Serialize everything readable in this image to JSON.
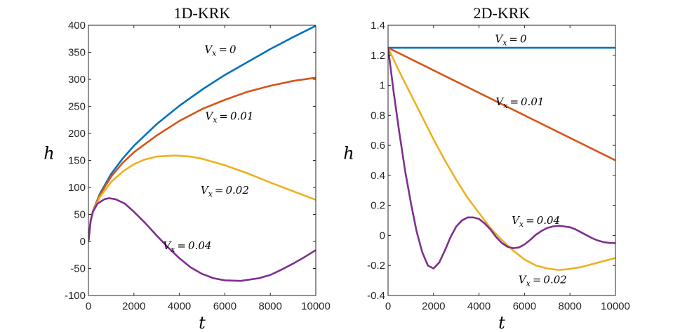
{
  "colors": {
    "blue": "#0072BD",
    "orange": "#D95319",
    "yellow": "#EDB120",
    "purple": "#7E2F8E"
  },
  "chart_data": [
    {
      "type": "line",
      "title": "1D-KRK",
      "xlabel": "t",
      "ylabel": "h",
      "xlim": [
        0,
        10000
      ],
      "ylim": [
        -100,
        400
      ],
      "xticks": [
        0,
        2000,
        4000,
        6000,
        8000,
        10000
      ],
      "xtick_labels": [
        "0",
        "2000",
        "4000",
        "6000",
        "8000",
        "10000"
      ],
      "yticks": [
        -100,
        -50,
        0,
        50,
        100,
        150,
        200,
        250,
        300,
        350,
        400
      ],
      "ytick_labels": [
        "-100",
        "-50",
        "0",
        "50",
        "100",
        "150",
        "200",
        "250",
        "300",
        "350",
        "400"
      ],
      "grid": false,
      "series": [
        {
          "name": "V_x = 0",
          "color": "#0072BD",
          "x": [
            0,
            100,
            200,
            500,
            1000,
            1500,
            2000,
            3000,
            4000,
            5000,
            6000,
            7000,
            8000,
            9000,
            10000
          ],
          "y": [
            0,
            40,
            56,
            88,
            125,
            153,
            177,
            217,
            251,
            281,
            308,
            332,
            356,
            378,
            399
          ]
        },
        {
          "name": "V_x = 0.01",
          "color": "#D95319",
          "x": [
            0,
            100,
            200,
            500,
            1000,
            1500,
            2000,
            3000,
            4000,
            5000,
            6000,
            7000,
            8000,
            9000,
            10000
          ],
          "y": [
            0,
            40,
            56,
            86,
            120,
            145,
            165,
            196,
            223,
            245,
            262,
            277,
            288,
            297,
            303
          ]
        },
        {
          "name": "V_x = 0.02",
          "color": "#EDB120",
          "x": [
            0,
            100,
            200,
            500,
            1000,
            1500,
            2000,
            2500,
            3000,
            3800,
            4500,
            5000,
            6000,
            7000,
            8000,
            9000,
            10000
          ],
          "y": [
            0,
            40,
            55,
            82,
            110,
            129,
            143,
            152,
            157,
            159,
            157,
            153,
            141,
            126,
            109,
            93,
            77
          ]
        },
        {
          "name": "V_x = 0.04",
          "color": "#7E2F8E",
          "x": [
            0,
            100,
            200,
            400,
            700,
            900,
            1200,
            1600,
            2000,
            2500,
            3000,
            3500,
            4000,
            4500,
            5000,
            5500,
            6000,
            6700,
            7500,
            8000,
            8500,
            9000,
            9500,
            10000
          ],
          "y": [
            0,
            38,
            55,
            70,
            78,
            80,
            78,
            70,
            55,
            34,
            11,
            -11,
            -31,
            -48,
            -60,
            -68,
            -72,
            -73,
            -68,
            -62,
            -52,
            -41,
            -29,
            -16
          ]
        }
      ],
      "annotations": [
        {
          "text": "V_x = 0",
          "x": 5800,
          "y": 355
        },
        {
          "text": "V_x = 0.01",
          "x": 6200,
          "y": 232
        },
        {
          "text": "V_x = 0.02",
          "x": 6000,
          "y": 95
        },
        {
          "text": "V_x = 0.04",
          "x": 4350,
          "y": -8
        }
      ]
    },
    {
      "type": "line",
      "title": "2D-KRK",
      "xlabel": "t",
      "ylabel": "h",
      "xlim": [
        0,
        10000
      ],
      "ylim": [
        -0.4,
        1.4
      ],
      "xticks": [
        0,
        2000,
        4000,
        6000,
        8000,
        10000
      ],
      "xtick_labels": [
        "0",
        "2000",
        "4000",
        "6000",
        "8000",
        "10000"
      ],
      "yticks": [
        -0.4,
        -0.2,
        0,
        0.2,
        0.4,
        0.6,
        0.8,
        1,
        1.2,
        1.4
      ],
      "ytick_labels": [
        "-0.4",
        "-0.2",
        "0",
        "0.2",
        "0.4",
        "0.6",
        "0.8",
        "1",
        "1.2",
        "1.4"
      ],
      "grid": false,
      "series": [
        {
          "name": "V_x = 0",
          "color": "#0072BD",
          "x": [
            0,
            10000
          ],
          "y": [
            1.25,
            1.25
          ]
        },
        {
          "name": "V_x = 0.01",
          "color": "#D95319",
          "x": [
            0,
            10000
          ],
          "y": [
            1.25,
            0.5
          ]
        },
        {
          "name": "V_x = 0.02",
          "color": "#EDB120",
          "x": [
            0,
            500,
            1000,
            1500,
            2000,
            2500,
            3000,
            3500,
            4000,
            4500,
            5000,
            5500,
            6000,
            6500,
            7000,
            7500,
            7900,
            8500,
            9000,
            9500,
            10000
          ],
          "y": [
            1.25,
            1.09,
            0.94,
            0.79,
            0.64,
            0.5,
            0.37,
            0.25,
            0.15,
            0.05,
            -0.03,
            -0.1,
            -0.16,
            -0.2,
            -0.22,
            -0.23,
            -0.225,
            -0.21,
            -0.19,
            -0.17,
            -0.15
          ]
        },
        {
          "name": "V_x = 0.04",
          "color": "#7E2F8E",
          "x": [
            0,
            250,
            500,
            750,
            1000,
            1250,
            1500,
            1750,
            2000,
            2250,
            2500,
            2750,
            3000,
            3250,
            3500,
            3750,
            4000,
            4250,
            4500,
            4750,
            5000,
            5250,
            5500,
            5750,
            6000,
            6250,
            6500,
            6750,
            7000,
            7250,
            7500,
            7750,
            8000,
            8250,
            8500,
            8750,
            9000,
            9250,
            9500,
            9750,
            10000
          ],
          "y": [
            1.25,
            0.95,
            0.68,
            0.43,
            0.22,
            0.03,
            -0.11,
            -0.2,
            -0.22,
            -0.18,
            -0.1,
            -0.01,
            0.06,
            0.1,
            0.12,
            0.12,
            0.11,
            0.08,
            0.04,
            -0.01,
            -0.05,
            -0.075,
            -0.085,
            -0.08,
            -0.06,
            -0.03,
            0.005,
            0.03,
            0.05,
            0.06,
            0.065,
            0.06,
            0.055,
            0.04,
            0.02,
            0.0,
            -0.02,
            -0.035,
            -0.045,
            -0.05,
            -0.05
          ]
        }
      ],
      "annotations": [
        {
          "text": "V_x = 0",
          "x": 5400,
          "y": 1.31
        },
        {
          "text": "V_x = 0.01",
          "x": 5800,
          "y": 0.89
        },
        {
          "text": "V_x = 0.02",
          "x": 6800,
          "y": -0.295
        },
        {
          "text": "V_x = 0.04",
          "x": 6500,
          "y": 0.1
        }
      ]
    }
  ]
}
